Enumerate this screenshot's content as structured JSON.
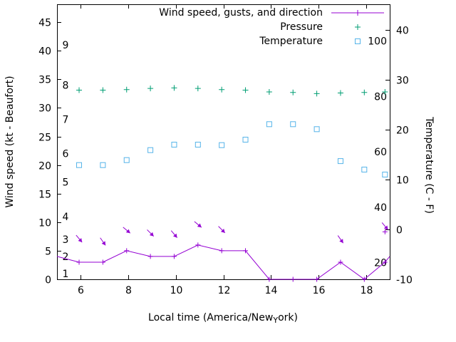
{
  "chart_data": {
    "type": "line",
    "background": "#ffffff",
    "legend": [
      {
        "label": "Wind speed, gusts, and direction",
        "marker": "line-plus",
        "color": "#9400d3"
      },
      {
        "label": "Pressure",
        "marker": "plus",
        "color": "#009e73"
      },
      {
        "label": "Temperature",
        "marker": "open-square",
        "color": "#56b4e9"
      }
    ],
    "xlabel": {
      "prefix": "Local time (America/New",
      "subscript": "Y",
      "suffix": "ork)"
    },
    "ylabel_left": "Wind speed (kt - Beaufort)",
    "ylabel_right": "Temperature (C - F)",
    "x_axis": {
      "min": 5,
      "max": 19,
      "ticks": [
        6,
        8,
        10,
        12,
        14,
        16,
        18
      ]
    },
    "y_left_axis": {
      "units": "kt",
      "min": 0,
      "max": 48,
      "ticks": [
        0,
        5,
        10,
        15,
        20,
        25,
        30,
        35,
        40,
        45
      ],
      "beaufort_labels": [
        {
          "label": "1",
          "kt": 1
        },
        {
          "label": "2",
          "kt": 4
        },
        {
          "label": "3",
          "kt": 7
        },
        {
          "label": "4",
          "kt": 11
        },
        {
          "label": "5",
          "kt": 17
        },
        {
          "label": "6",
          "kt": 22
        },
        {
          "label": "7",
          "kt": 28
        },
        {
          "label": "8",
          "kt": 34
        },
        {
          "label": "9",
          "kt": 41
        }
      ]
    },
    "y_right_axis": {
      "units": "C",
      "min": -10,
      "max": 45,
      "ticks": [
        -10,
        0,
        10,
        20,
        30,
        40
      ],
      "fahrenheit_labels": [
        {
          "label": "20",
          "f": 20
        },
        {
          "label": "40",
          "f": 40
        },
        {
          "label": "60",
          "f": 60
        },
        {
          "label": "80",
          "f": 80
        },
        {
          "label": "100",
          "f": 100
        }
      ]
    },
    "series": {
      "wind_speed": {
        "x": [
          5.0,
          5.93,
          6.93,
          7.93,
          8.93,
          9.93,
          10.93,
          11.93,
          12.93,
          13.93,
          14.93,
          15.93,
          16.93,
          17.93,
          18.8,
          19.0
        ],
        "kt": [
          4,
          3,
          3,
          5,
          4,
          4,
          6,
          5,
          5,
          0,
          0,
          0,
          3,
          0,
          3,
          4
        ]
      },
      "wind_gusts": {
        "x": [
          18.8
        ],
        "kt": [
          8.3
        ]
      },
      "wind_direction_arrows": [
        {
          "x": 5.93,
          "kt": 7.1,
          "angle_deg": 50
        },
        {
          "x": 6.93,
          "kt": 6.6,
          "angle_deg": 55
        },
        {
          "x": 7.93,
          "kt": 8.6,
          "angle_deg": 40
        },
        {
          "x": 8.93,
          "kt": 8.1,
          "angle_deg": 45
        },
        {
          "x": 9.93,
          "kt": 7.9,
          "angle_deg": 50
        },
        {
          "x": 10.93,
          "kt": 9.6,
          "angle_deg": 40
        },
        {
          "x": 11.93,
          "kt": 8.7,
          "angle_deg": 45
        },
        {
          "x": 16.93,
          "kt": 7.0,
          "angle_deg": 55
        },
        {
          "x": 18.8,
          "kt": 9.3,
          "angle_deg": 50
        }
      ],
      "pressure": {
        "x": [
          5.93,
          6.93,
          7.93,
          8.93,
          9.93,
          10.93,
          11.93,
          12.93,
          13.93,
          14.93,
          15.93,
          16.93,
          17.93,
          18.8
        ],
        "y_left_axis_units": [
          33.1,
          33.1,
          33.2,
          33.4,
          33.5,
          33.4,
          33.2,
          33.1,
          32.8,
          32.7,
          32.5,
          32.6,
          32.7,
          32.8
        ]
      },
      "temperature": {
        "x": [
          5.93,
          6.93,
          7.93,
          8.93,
          9.93,
          10.93,
          11.93,
          12.93,
          13.93,
          14.93,
          15.93,
          16.93,
          17.93,
          18.8
        ],
        "c": [
          12.9,
          12.9,
          13.9,
          15.9,
          17.0,
          17.0,
          16.9,
          18.0,
          21.1,
          21.1,
          20.1,
          13.7,
          12.0,
          11.0
        ]
      }
    }
  }
}
